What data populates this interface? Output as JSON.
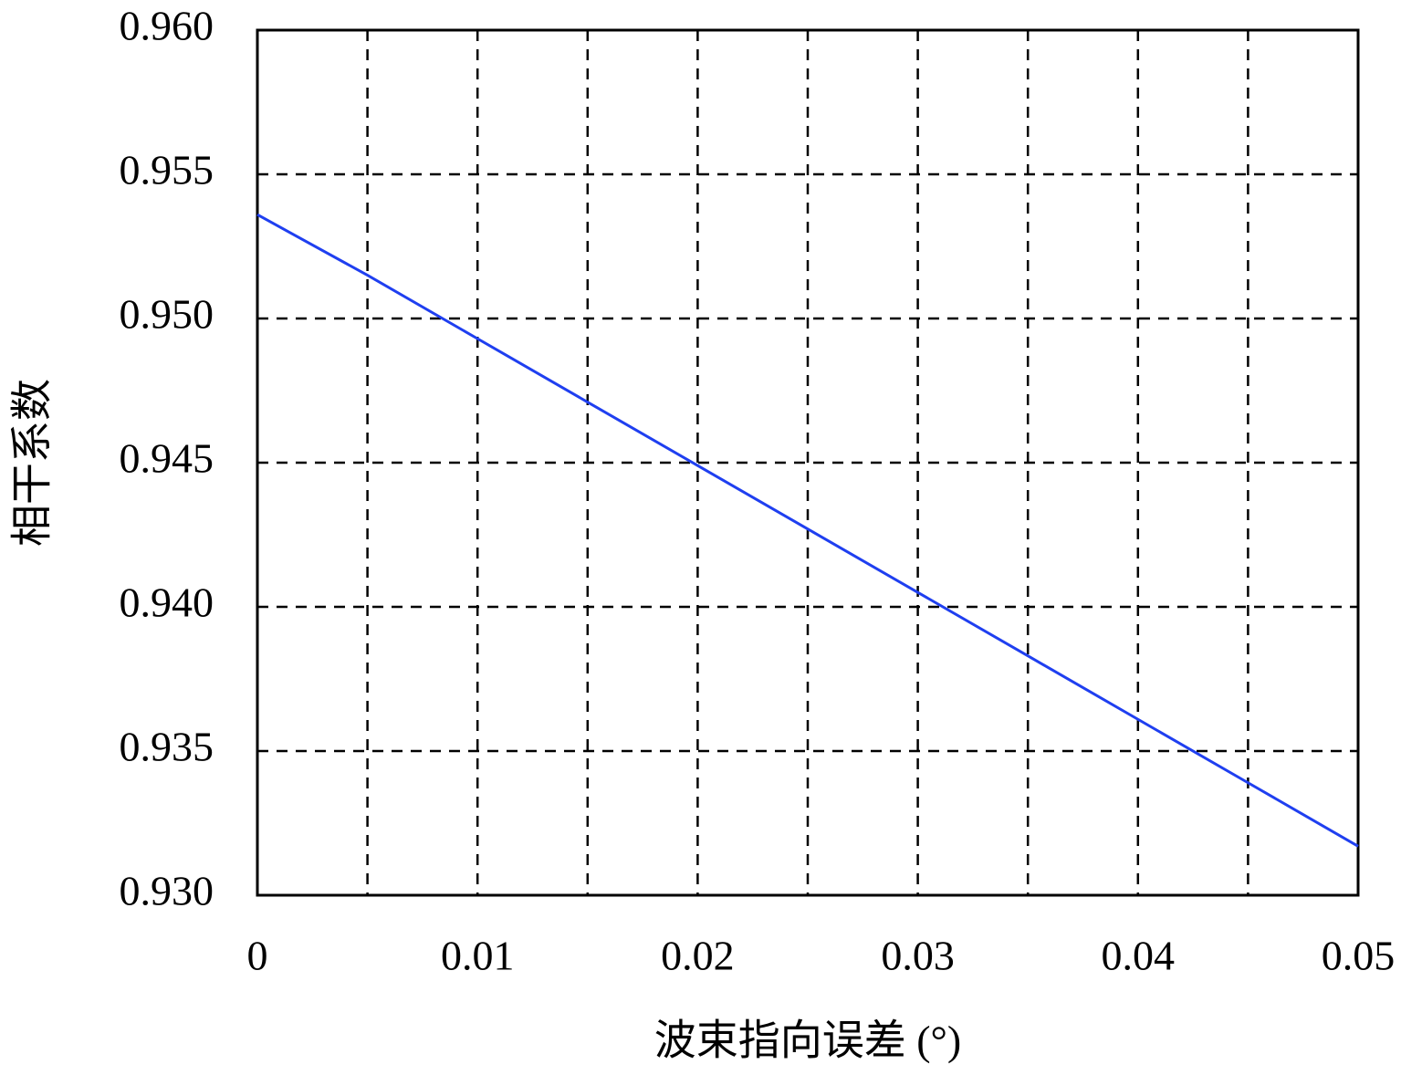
{
  "chart_data": {
    "type": "line",
    "x_label": "波束指向误差 (°)",
    "y_label": "相干系数",
    "x": [
      0,
      0.005,
      0.01,
      0.015,
      0.02,
      0.025,
      0.03,
      0.035,
      0.04,
      0.045,
      0.05
    ],
    "series": [
      {
        "name": "相干系数",
        "color": "#1f3ff0",
        "values": [
          0.9536,
          0.9515,
          0.9493,
          0.9471,
          0.9449,
          0.9427,
          0.9405,
          0.9383,
          0.9361,
          0.9339,
          0.9317
        ]
      }
    ],
    "xlim": [
      0,
      0.05
    ],
    "ylim": [
      0.93,
      0.96
    ],
    "xticks": [
      0,
      0.01,
      0.02,
      0.03,
      0.04,
      0.05
    ],
    "xminor_ticks": [
      0.005,
      0.015,
      0.025,
      0.035,
      0.045
    ],
    "yticks": [
      {
        "value": 0.93,
        "label": "0.930"
      },
      0.935,
      {
        "value": 0.94,
        "label": "0.940"
      },
      0.945,
      {
        "value": 0.95,
        "label": "0.950"
      },
      0.955,
      {
        "value": 0.96,
        "label": "0.960"
      }
    ],
    "grid": true
  }
}
